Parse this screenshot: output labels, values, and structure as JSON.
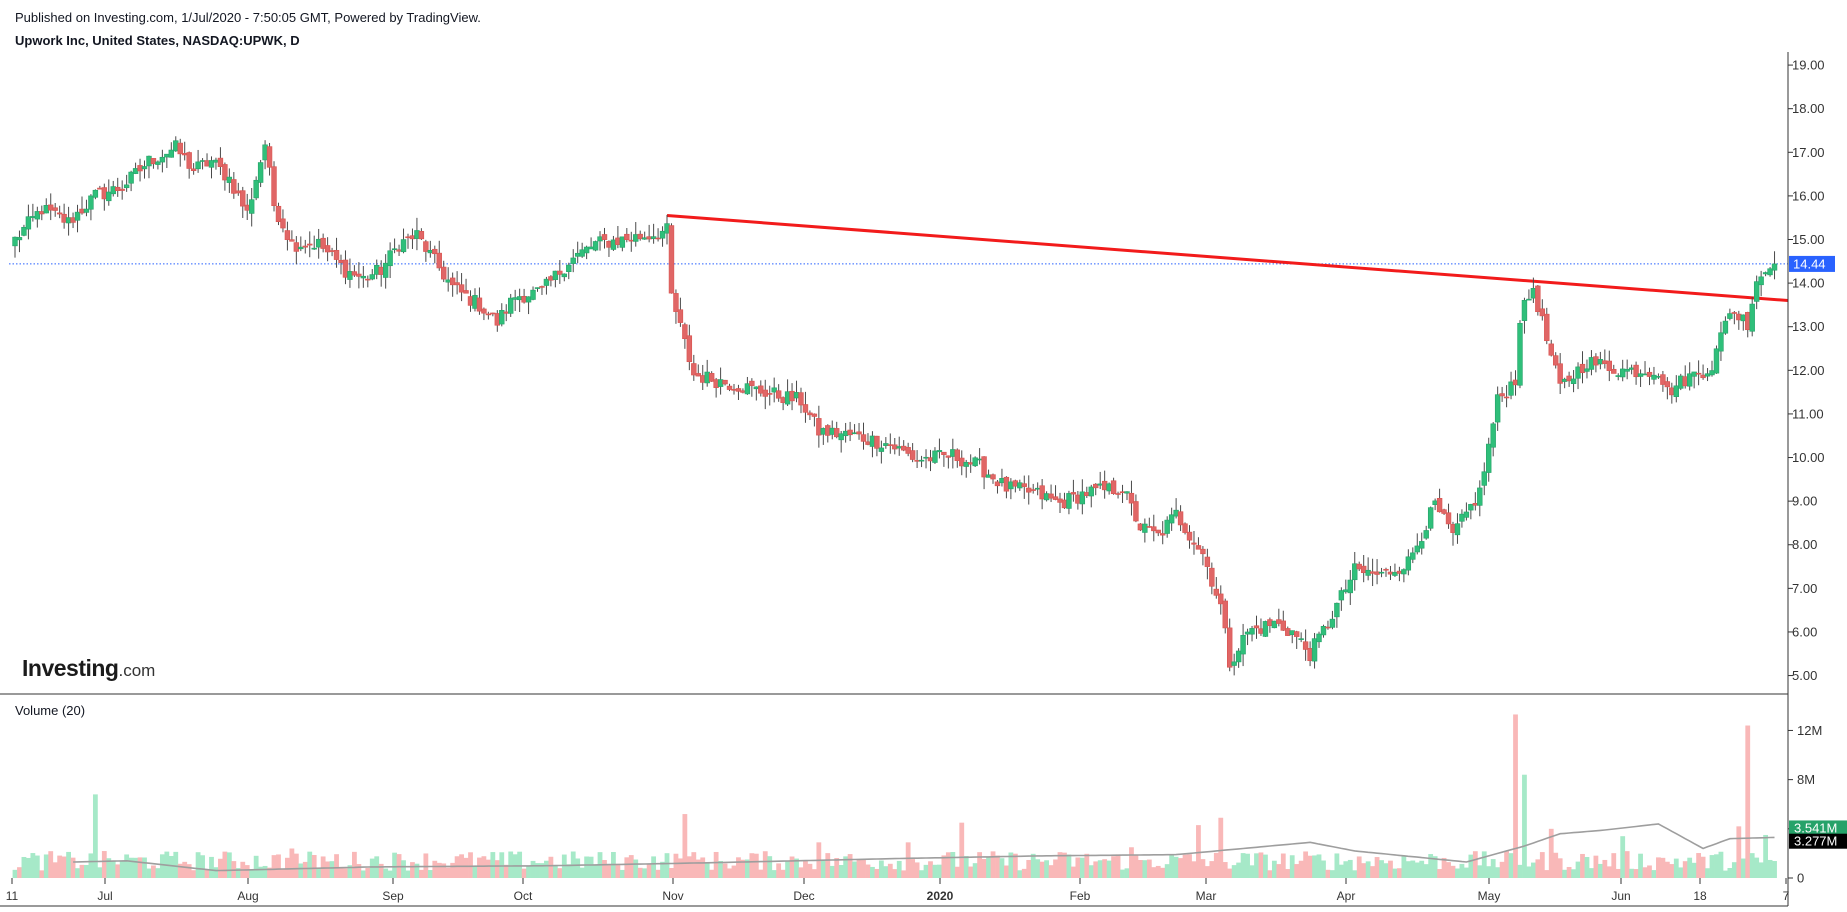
{
  "header": {
    "published": "Published on Investing.com, 1/Jul/2020 - 7:50:05 GMT, Powered by TradingView.",
    "title": "Upwork Inc, United States, NASDAQ:UPWK, D"
  },
  "logo": {
    "brand": "Investing",
    "suffix": ".com"
  },
  "volume_label": "Volume (20)",
  "colors": {
    "up": "#26a269",
    "up_fill": "#2fbf7a",
    "down": "#d9534f",
    "down_fill": "#e06666",
    "vol_up": "#a6e9c8",
    "vol_down": "#f9b8b8",
    "trend": "#f21b1b",
    "ma": "#9e9e9e",
    "last_price": "#2962ff",
    "vol_tag_up": "#26a269"
  },
  "chart_data": [
    {
      "type": "candlestick",
      "title": "Upwork Inc, United States, NASDAQ:UPWK, D",
      "ylim": [
        4.6,
        19.3
      ],
      "y_ticks": [
        "19.00",
        "18.00",
        "17.00",
        "16.00",
        "15.00",
        "14.00",
        "13.00",
        "12.00",
        "11.00",
        "10.00",
        "9.00",
        "8.00",
        "7.00",
        "6.00",
        "5.00"
      ],
      "x_ticks": [
        "11",
        "Jul",
        "Aug",
        "Sep",
        "Oct",
        "Nov",
        "Dec",
        "2020",
        "Feb",
        "Mar",
        "Apr",
        "May",
        "Jun",
        "18",
        "7"
      ],
      "last_price": 14.44,
      "last_price_label": "14.44",
      "anchors": [
        [
          0,
          15.0
        ],
        [
          6,
          15.7
        ],
        [
          12,
          15.4
        ],
        [
          18,
          16.0
        ],
        [
          24,
          16.2
        ],
        [
          30,
          16.8
        ],
        [
          36,
          17.1
        ],
        [
          40,
          16.6
        ],
        [
          44,
          16.8
        ],
        [
          48,
          16.4
        ],
        [
          52,
          15.6
        ],
        [
          56,
          17.2
        ],
        [
          58,
          15.8
        ],
        [
          62,
          14.9
        ],
        [
          68,
          14.9
        ],
        [
          74,
          14.3
        ],
        [
          78,
          14.1
        ],
        [
          82,
          14.3
        ],
        [
          86,
          14.9
        ],
        [
          90,
          15.1
        ],
        [
          94,
          14.5
        ],
        [
          98,
          13.9
        ],
        [
          104,
          13.5
        ],
        [
          108,
          13.1
        ],
        [
          112,
          13.7
        ],
        [
          118,
          13.8
        ],
        [
          124,
          14.5
        ],
        [
          130,
          14.9
        ],
        [
          136,
          15.0
        ],
        [
          142,
          15.1
        ],
        [
          146,
          15.2
        ],
        [
          147,
          13.7
        ],
        [
          152,
          11.9
        ],
        [
          160,
          11.7
        ],
        [
          168,
          11.5
        ],
        [
          176,
          11.3
        ],
        [
          180,
          10.6
        ],
        [
          188,
          10.5
        ],
        [
          196,
          10.3
        ],
        [
          202,
          9.95
        ],
        [
          210,
          10.05
        ],
        [
          216,
          9.8
        ],
        [
          222,
          9.3
        ],
        [
          228,
          9.2
        ],
        [
          234,
          8.95
        ],
        [
          240,
          9.2
        ],
        [
          248,
          9.3
        ],
        [
          252,
          8.4
        ],
        [
          256,
          8.2
        ],
        [
          260,
          8.7
        ],
        [
          266,
          7.8
        ],
        [
          270,
          6.6
        ],
        [
          272,
          5.3
        ],
        [
          276,
          6.0
        ],
        [
          282,
          6.2
        ],
        [
          286,
          6.0
        ],
        [
          290,
          5.5
        ],
        [
          294,
          6.2
        ],
        [
          300,
          7.4
        ],
        [
          306,
          7.3
        ],
        [
          312,
          7.6
        ],
        [
          318,
          8.9
        ],
        [
          322,
          8.2
        ],
        [
          328,
          9.2
        ],
        [
          332,
          11.3
        ],
        [
          336,
          11.8
        ],
        [
          337,
          13.2
        ],
        [
          340,
          13.9
        ],
        [
          344,
          12.3
        ],
        [
          346,
          11.6
        ],
        [
          352,
          12.2
        ],
        [
          360,
          12.0
        ],
        [
          368,
          12.0
        ],
        [
          370,
          11.5
        ],
        [
          374,
          11.8
        ],
        [
          380,
          12.1
        ],
        [
          384,
          13.4
        ],
        [
          388,
          13.1
        ],
        [
          390,
          14.1
        ],
        [
          394,
          14.44
        ]
      ]
    },
    {
      "type": "bar",
      "title": "Volume (20)",
      "ylim": [
        0,
        13.5
      ],
      "y_ticks": [
        "12M",
        "8M",
        "4M",
        "0"
      ],
      "last_volume_label": "3.541M",
      "last_ma_label": "3.277M",
      "spikes": [
        [
          18,
          6.8
        ],
        [
          62,
          2.4
        ],
        [
          150,
          5.2
        ],
        [
          180,
          2.9
        ],
        [
          200,
          2.9
        ],
        [
          212,
          4.5
        ],
        [
          250,
          2.5
        ],
        [
          265,
          4.3
        ],
        [
          270,
          4.9
        ],
        [
          336,
          13.3
        ],
        [
          338,
          8.4
        ],
        [
          344,
          4.0
        ],
        [
          360,
          3.4
        ],
        [
          386,
          4.2
        ],
        [
          388,
          12.4
        ],
        [
          392,
          3.5
        ]
      ],
      "ma_anchors": [
        [
          0,
          1.2
        ],
        [
          25,
          1.4
        ],
        [
          45,
          0.6
        ],
        [
          80,
          0.9
        ],
        [
          120,
          1.0
        ],
        [
          150,
          1.2
        ],
        [
          175,
          1.4
        ],
        [
          200,
          1.6
        ],
        [
          230,
          1.8
        ],
        [
          260,
          1.9
        ],
        [
          290,
          2.9
        ],
        [
          300,
          2.2
        ],
        [
          325,
          1.3
        ],
        [
          338,
          2.6
        ],
        [
          346,
          3.6
        ],
        [
          356,
          3.9
        ],
        [
          368,
          4.4
        ],
        [
          378,
          2.4
        ],
        [
          384,
          3.2
        ],
        [
          394,
          3.3
        ]
      ]
    }
  ]
}
